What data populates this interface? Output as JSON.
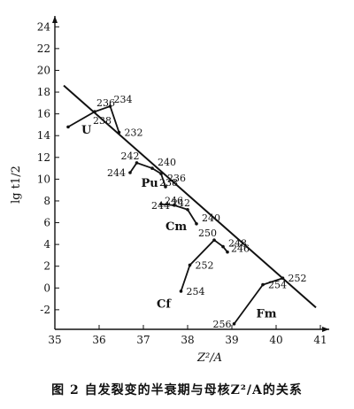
{
  "caption": "图 2   自发裂变的半衰期与母核Z²/A的关系",
  "chart_data": {
    "type": "line",
    "title": "",
    "xlabel": "Z²/A",
    "ylabel": "lg t1/2",
    "xlim": [
      35,
      41.2
    ],
    "ylim": [
      -3.8,
      25
    ],
    "xticks": [
      35,
      36,
      37,
      38,
      39,
      40,
      41
    ],
    "yticks": [
      -2,
      0,
      2,
      4,
      6,
      8,
      10,
      12,
      14,
      16,
      18,
      20,
      22,
      24
    ],
    "grid": false,
    "trend_line": [
      [
        35.2,
        18.6
      ],
      [
        40.9,
        -1.8
      ]
    ],
    "series": [
      {
        "name": "U",
        "label_pos": [
          35.6,
          14.2
        ],
        "points": [
          {
            "x": 35.3,
            "y": 14.8,
            "label": ""
          },
          {
            "x": 35.9,
            "y": 16.2,
            "label": "236"
          },
          {
            "x": 35.9,
            "y": 16.2,
            "label": "238"
          },
          {
            "x": 36.25,
            "y": 16.7,
            "label": "234"
          },
          {
            "x": 36.45,
            "y": 14.3,
            "label": "232"
          }
        ]
      },
      {
        "name": "Pu",
        "label_pos": [
          36.95,
          9.3
        ],
        "points": [
          {
            "x": 36.7,
            "y": 10.6,
            "label": "244"
          },
          {
            "x": 36.85,
            "y": 11.5,
            "label": "242"
          },
          {
            "x": 37.2,
            "y": 11.0,
            "label": "240"
          },
          {
            "x": 37.4,
            "y": 10.5,
            "label": "238"
          },
          {
            "x": 37.5,
            "y": 9.3,
            "label": "236"
          }
        ]
      },
      {
        "name": "Cm",
        "label_pos": [
          37.5,
          5.3
        ],
        "points": [
          {
            "x": 37.4,
            "y": 7.7,
            "label": "246"
          },
          {
            "x": 37.7,
            "y": 7.6,
            "label": "244"
          },
          {
            "x": 38.0,
            "y": 7.2,
            "label": "242"
          },
          {
            "x": 38.2,
            "y": 5.9,
            "label": "240"
          }
        ]
      },
      {
        "name": "Cf",
        "label_pos": [
          37.3,
          -1.8
        ],
        "points": [
          {
            "x": 37.85,
            "y": -0.3,
            "label": "254"
          },
          {
            "x": 38.05,
            "y": 2.1,
            "label": "252"
          },
          {
            "x": 38.6,
            "y": 4.4,
            "label": "250"
          },
          {
            "x": 38.8,
            "y": 3.8,
            "label": "248"
          },
          {
            "x": 38.9,
            "y": 3.3,
            "label": "246"
          }
        ]
      },
      {
        "name": "Fm",
        "label_pos": [
          39.55,
          -2.7
        ],
        "points": [
          {
            "x": 39.05,
            "y": -3.3,
            "label": "256"
          },
          {
            "x": 39.7,
            "y": 0.3,
            "label": "254"
          },
          {
            "x": 40.15,
            "y": 0.9,
            "label": "252"
          }
        ]
      }
    ]
  }
}
